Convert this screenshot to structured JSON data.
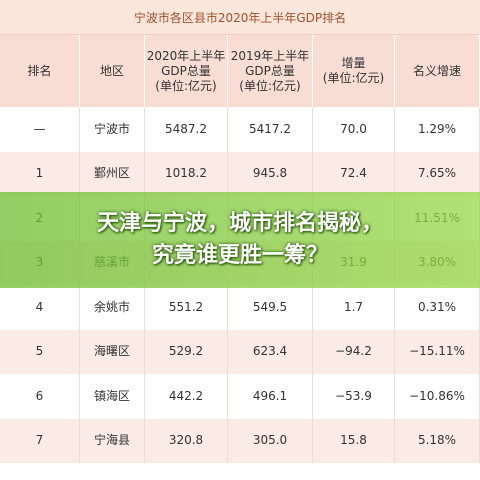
{
  "title": "宁波市各区县市2020年上半年GDP排名",
  "table": {
    "header": [
      [
        "排名"
      ],
      [
        "地区"
      ],
      [
        "2020年上半年",
        "GDP总量",
        "(单位:亿元)"
      ],
      [
        "2019年上半年",
        "GDP总量",
        "(单位:亿元)"
      ],
      [
        "增量",
        "(单位:亿元)"
      ],
      [
        "名义增速"
      ]
    ],
    "rows": [
      [
        "—",
        "宁波市",
        "5487.2",
        "5417.2",
        "70.0",
        "1.29%"
      ],
      [
        "1",
        "鄞州区",
        "1018.2",
        "945.8",
        "72.4",
        "7.65%"
      ],
      [
        "2",
        null,
        null,
        null,
        null,
        "11.51%"
      ],
      [
        "3",
        "慈溪市",
        null,
        null,
        "31.9",
        "3.80%"
      ],
      [
        "4",
        "余姚市",
        "551.2",
        "549.5",
        "1.7",
        "0.31%"
      ],
      [
        "5",
        "海曙区",
        "529.2",
        "623.4",
        "−94.2",
        "−15.11%"
      ],
      [
        "6",
        "镇海区",
        "442.2",
        "496.1",
        "−53.9",
        "−10.86%"
      ],
      [
        "7",
        "宁海县",
        "320.8",
        "305.0",
        "15.8",
        "5.18%"
      ]
    ]
  },
  "overlay": {
    "lines": [
      "天津与宁波，城市排名揭秘，",
      "究竟谁更胜一筹？"
    ]
  }
}
